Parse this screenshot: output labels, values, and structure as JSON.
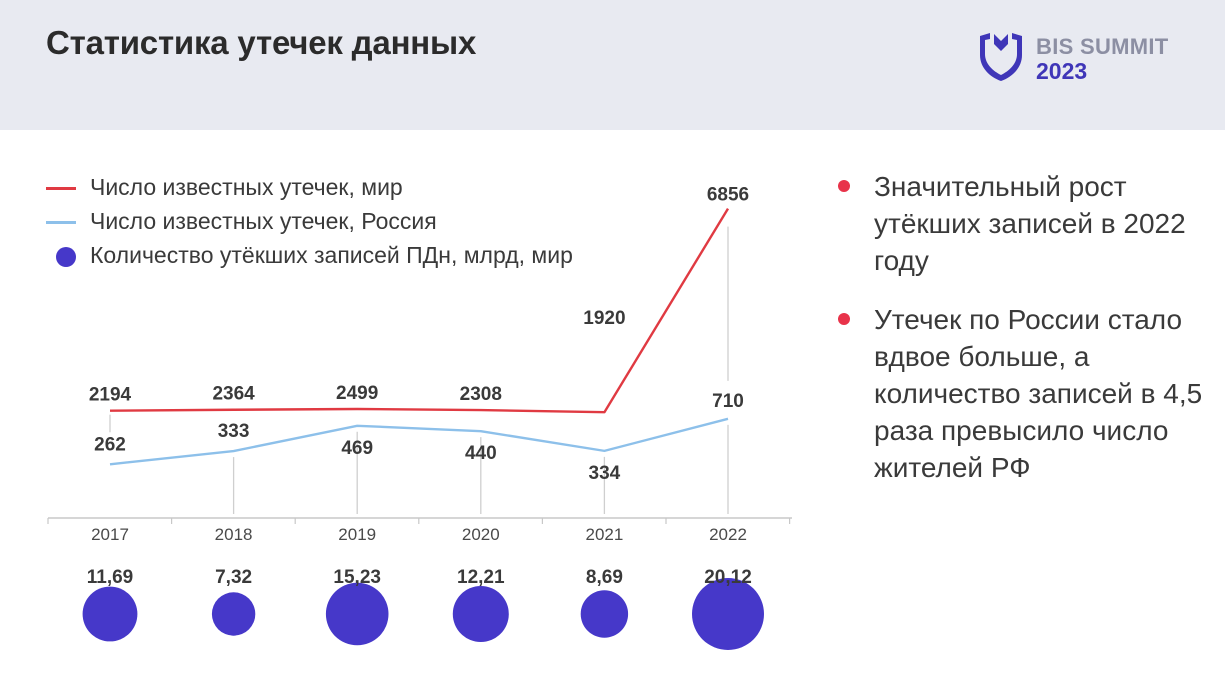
{
  "header": {
    "title": "Статистика утечек данных",
    "logo_line1": "BIS SUMMIT",
    "logo_line2": "2023"
  },
  "legend": {
    "items": [
      {
        "label": "Число известных утечек, мир",
        "color": "#e03a42",
        "kind": "line"
      },
      {
        "label": "Число известных утечек, Россия",
        "color": "#8dc0ea",
        "kind": "line"
      },
      {
        "label": "Количество утёкших записей ПДн, млрд, мир",
        "color": "#4638c9",
        "kind": "dot"
      }
    ]
  },
  "bullets": [
    {
      "text": "Значительный рост утёкших записей в 2022 году"
    },
    {
      "text": "Утечек по России стало вдвое больше, а количество записей в 4,5 раза превысило число жителей РФ"
    }
  ],
  "chart_data": {
    "type": "line",
    "categories": [
      "2017",
      "2018",
      "2019",
      "2020",
      "2021",
      "2022"
    ],
    "series": [
      {
        "name": "Число известных утечек, мир",
        "values": [
          2194,
          2364,
          2499,
          2308,
          1920,
          6856
        ],
        "labels": [
          "2194",
          "2364",
          "2499",
          "2308",
          "1920",
          "6856"
        ],
        "color": "#e03a42"
      },
      {
        "name": "Число известных утечек, Россия",
        "values": [
          262,
          333,
          469,
          440,
          334,
          710
        ],
        "labels": [
          "262",
          "333",
          "469",
          "440",
          "334",
          "710"
        ],
        "color": "#8dc0ea"
      }
    ],
    "bubbles": {
      "name": "Количество утёкших записей ПДн, млрд, мир",
      "values": [
        11.69,
        7.32,
        15.23,
        12.21,
        8.69,
        20.12
      ],
      "labels": [
        "11,69",
        "7,32",
        "15,23",
        "12,21",
        "8,69",
        "20,12"
      ],
      "color": "#4638c9"
    },
    "colors": {
      "accent": "#e8334a",
      "axis": "#c8c8c8"
    }
  }
}
